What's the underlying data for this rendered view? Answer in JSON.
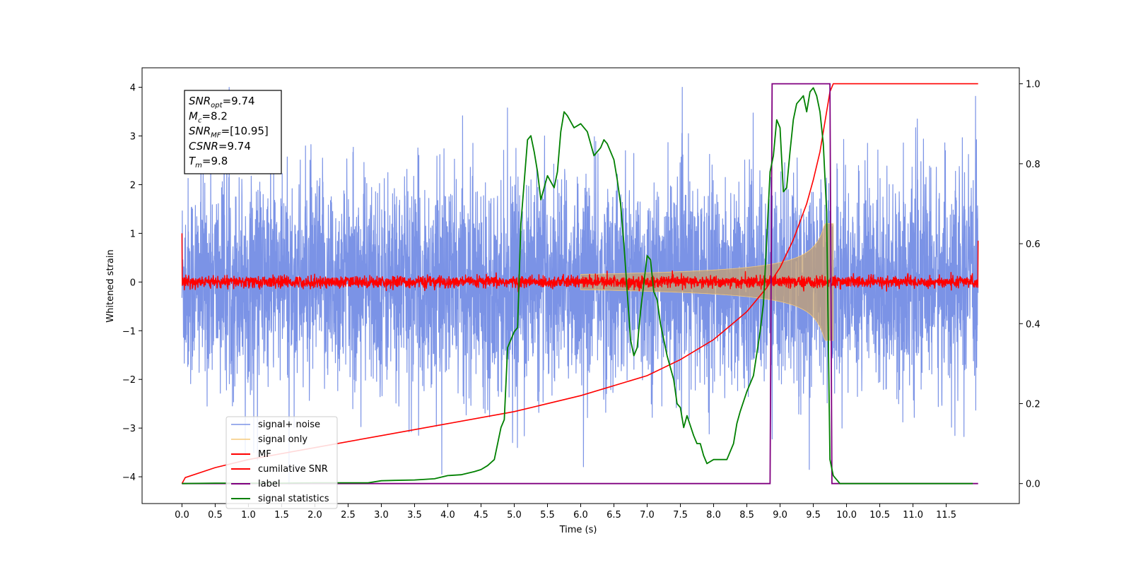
{
  "chart_data": {
    "type": "line",
    "title": "",
    "xlabel": "Time (s)",
    "ylabel": "Whitened strain",
    "ylabel_right": "",
    "xlim": [
      -0.6,
      12.6
    ],
    "ylim": [
      -4.55,
      4.4
    ],
    "ylim_right": [
      -0.05,
      1.04
    ],
    "x_ticks": [
      0.0,
      0.5,
      1.0,
      1.5,
      2.0,
      2.5,
      3.0,
      3.5,
      4.0,
      4.5,
      5.0,
      5.5,
      6.0,
      6.5,
      7.0,
      7.5,
      8.0,
      8.5,
      9.0,
      9.5,
      10.0,
      10.5,
      11.0,
      11.5
    ],
    "x_tick_labels": [
      "0.0",
      "0.5",
      "1.0",
      "1.5",
      "2.0",
      "2.5",
      "3.0",
      "3.5",
      "4.0",
      "4.5",
      "5.0",
      "5.5",
      "6.0",
      "6.5",
      "7.0",
      "7.5",
      "8.0",
      "8.5",
      "9.0",
      "9.5",
      "10.0",
      "10.5",
      "11.0",
      "11.5"
    ],
    "y_ticks": [
      -4,
      -3,
      -2,
      -1,
      0,
      1,
      2,
      3,
      4
    ],
    "y_tick_labels": [
      "−4",
      "−3",
      "−2",
      "−1",
      "0",
      "1",
      "2",
      "3",
      "4"
    ],
    "y_right_ticks": [
      0.0,
      0.2,
      0.4,
      0.6,
      0.8,
      1.0
    ],
    "y_right_tick_labels": [
      "0.0",
      "0.2",
      "0.4",
      "0.6",
      "0.8",
      "1.0"
    ],
    "grid": false,
    "legend_placement": "lower-left",
    "annotation": {
      "lines": [
        {
          "main": "SNR",
          "sub": "opt",
          "value": "=9.74"
        },
        {
          "main": "M",
          "sub": "c",
          "value": "=8.2"
        },
        {
          "main": "SNR",
          "sub": "MF",
          "value": "=[10.95]"
        },
        {
          "main": "CSNR",
          "sub": "",
          "value": "=9.74"
        },
        {
          "main": "T",
          "sub": "m",
          "value": "=9.8"
        }
      ]
    },
    "series": [
      {
        "name": "signal+ noise",
        "color": "#7b93e6",
        "axis": "left",
        "kind": "noise",
        "x_range": [
          0.0,
          11.98
        ],
        "approx_range": [
          -4.15,
          4.0
        ]
      },
      {
        "name": "signal only",
        "color": "#f5c97a",
        "axis": "left",
        "kind": "chirp",
        "x_range": [
          0.0,
          9.8
        ],
        "peak_amplitude": 1.2
      },
      {
        "name": "MF",
        "color": "#ff0000",
        "axis": "left",
        "kind": "mf",
        "x_range": [
          0.0,
          11.98
        ],
        "edge_values": [
          1.0,
          0.85
        ]
      },
      {
        "name": "cumilative SNR",
        "color": "#ff0000",
        "axis": "right",
        "x": [
          0.0,
          0.05,
          0.5,
          1.0,
          2.0,
          3.0,
          4.0,
          5.0,
          6.0,
          7.0,
          7.5,
          8.0,
          8.5,
          8.8,
          9.0,
          9.2,
          9.4,
          9.5,
          9.6,
          9.7,
          9.75,
          9.8,
          11.98
        ],
        "values": [
          0.0,
          0.015,
          0.04,
          0.06,
          0.09,
          0.12,
          0.15,
          0.18,
          0.22,
          0.27,
          0.31,
          0.36,
          0.43,
          0.49,
          0.54,
          0.61,
          0.7,
          0.76,
          0.83,
          0.93,
          0.98,
          1.0,
          1.0
        ]
      },
      {
        "name": "label",
        "color": "#800080",
        "axis": "right",
        "x": [
          0.0,
          8.85,
          8.88,
          9.75,
          9.78,
          11.98
        ],
        "values": [
          0.0,
          0.0,
          1.0,
          1.0,
          0.0,
          0.0
        ]
      },
      {
        "name": "signal statistics",
        "color": "#008000",
        "axis": "right",
        "x": [
          0.0,
          0.5,
          1.0,
          1.5,
          2.0,
          2.5,
          2.8,
          3.0,
          3.2,
          3.5,
          3.8,
          4.0,
          4.2,
          4.4,
          4.5,
          4.6,
          4.7,
          4.8,
          4.85,
          4.9,
          5.0,
          5.05,
          5.1,
          5.2,
          5.25,
          5.3,
          5.35,
          5.4,
          5.5,
          5.6,
          5.65,
          5.7,
          5.75,
          5.8,
          5.9,
          6.0,
          6.1,
          6.2,
          6.3,
          6.35,
          6.4,
          6.5,
          6.55,
          6.6,
          6.65,
          6.7,
          6.75,
          6.8,
          6.85,
          6.9,
          7.0,
          7.05,
          7.1,
          7.15,
          7.2,
          7.3,
          7.4,
          7.45,
          7.5,
          7.55,
          7.6,
          7.7,
          7.75,
          7.8,
          7.85,
          7.9,
          8.0,
          8.2,
          8.3,
          8.35,
          8.4,
          8.5,
          8.6,
          8.7,
          8.75,
          8.8,
          8.85,
          8.9,
          8.95,
          9.0,
          9.05,
          9.1,
          9.15,
          9.2,
          9.25,
          9.3,
          9.35,
          9.4,
          9.45,
          9.5,
          9.55,
          9.6,
          9.65,
          9.7,
          9.75,
          9.8,
          9.9,
          10.5,
          11.0,
          11.5,
          11.9
        ],
        "values": [
          0.0,
          0.001,
          0.001,
          0.001,
          0.002,
          0.002,
          0.002,
          0.007,
          0.008,
          0.009,
          0.012,
          0.02,
          0.022,
          0.03,
          0.035,
          0.045,
          0.06,
          0.14,
          0.16,
          0.34,
          0.38,
          0.39,
          0.65,
          0.86,
          0.87,
          0.83,
          0.78,
          0.71,
          0.77,
          0.74,
          0.78,
          0.88,
          0.93,
          0.92,
          0.89,
          0.9,
          0.88,
          0.82,
          0.84,
          0.86,
          0.85,
          0.81,
          0.76,
          0.7,
          0.6,
          0.48,
          0.36,
          0.32,
          0.34,
          0.43,
          0.57,
          0.56,
          0.48,
          0.46,
          0.4,
          0.32,
          0.26,
          0.2,
          0.19,
          0.14,
          0.17,
          0.12,
          0.1,
          0.1,
          0.07,
          0.05,
          0.06,
          0.06,
          0.1,
          0.15,
          0.18,
          0.23,
          0.27,
          0.38,
          0.45,
          0.61,
          0.78,
          0.82,
          0.91,
          0.89,
          0.73,
          0.74,
          0.83,
          0.91,
          0.95,
          0.96,
          0.97,
          0.93,
          0.98,
          0.99,
          0.97,
          0.93,
          0.85,
          0.68,
          0.06,
          0.02,
          0.0,
          0.0,
          0.0,
          0.0,
          0.0
        ]
      }
    ]
  }
}
